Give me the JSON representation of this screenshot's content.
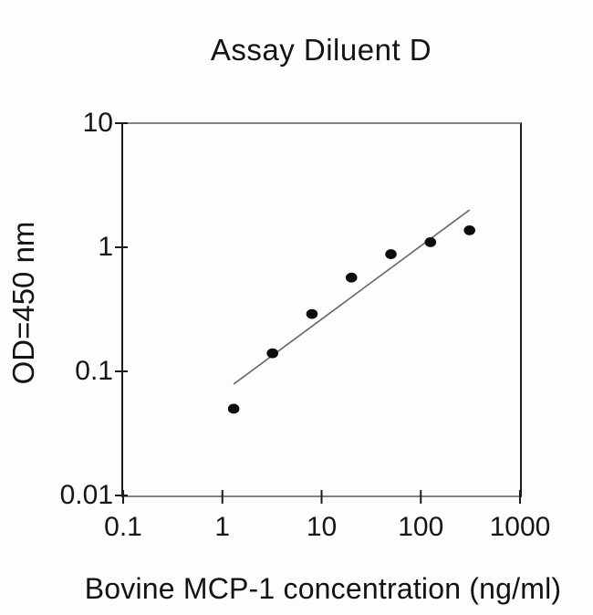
{
  "title": "Assay Diluent D",
  "chart_data": {
    "type": "scatter",
    "title": "Assay Diluent D",
    "xlabel": "Bovine MCP-1 concentration (ng/ml)",
    "ylabel": "OD=450 nm",
    "x_scale": "log",
    "y_scale": "log",
    "xlim": [
      0.1,
      1000
    ],
    "ylim": [
      0.01,
      10
    ],
    "x_tick_labels": [
      "0.1",
      "1",
      "10",
      "100",
      "1000"
    ],
    "x_tick_values": [
      0.1,
      1,
      10,
      100,
      1000
    ],
    "y_tick_labels": [
      "10",
      "1",
      "0.1",
      "0.01"
    ],
    "y_tick_values": [
      10,
      1,
      0.1,
      0.01
    ],
    "grid": false,
    "legend_position": "none",
    "marker_color": "#0d0d0d",
    "fit_line_color": "#6b6b6b",
    "axis_color": "#1c1c1c",
    "frame_color": "#848484",
    "series": [
      {
        "name": "standard-curve-points",
        "marker": "filled-circle",
        "points": [
          {
            "x": 1.3,
            "y": 0.05
          },
          {
            "x": 3.2,
            "y": 0.14
          },
          {
            "x": 8,
            "y": 0.29
          },
          {
            "x": 20,
            "y": 0.57
          },
          {
            "x": 50,
            "y": 0.88
          },
          {
            "x": 125,
            "y": 1.1
          },
          {
            "x": 310,
            "y": 1.37
          }
        ]
      }
    ],
    "fit_line": {
      "x1": 1.3,
      "y1": 0.079,
      "x2": 310,
      "y2": 2.0
    }
  }
}
